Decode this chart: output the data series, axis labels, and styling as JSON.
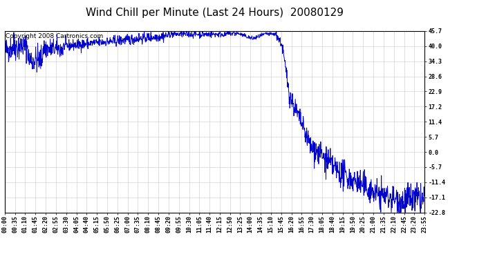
{
  "title": "Wind Chill per Minute (Last 24 Hours)  20080129",
  "copyright_text": "Copyright 2008 Cartronics.com",
  "line_color": "#0000cc",
  "background_color": "#ffffff",
  "plot_bg_color": "#ffffff",
  "grid_color": "#c8c8c8",
  "yticks": [
    45.7,
    40.0,
    34.3,
    28.6,
    22.9,
    17.2,
    11.4,
    5.7,
    0.0,
    -5.7,
    -11.4,
    -17.1,
    -22.8
  ],
  "ymin": -22.8,
  "ymax": 45.7,
  "xtick_labels": [
    "00:00",
    "00:35",
    "01:10",
    "01:45",
    "02:20",
    "02:55",
    "03:30",
    "04:05",
    "04:40",
    "05:15",
    "05:50",
    "06:25",
    "07:00",
    "07:35",
    "08:10",
    "08:45",
    "09:20",
    "09:55",
    "10:30",
    "11:05",
    "11:40",
    "12:15",
    "12:50",
    "13:25",
    "14:00",
    "14:35",
    "15:10",
    "15:45",
    "16:20",
    "16:55",
    "17:30",
    "18:05",
    "18:40",
    "19:15",
    "19:50",
    "20:25",
    "21:00",
    "21:35",
    "22:10",
    "22:45",
    "23:20",
    "23:55"
  ],
  "title_fontsize": 11,
  "tick_fontsize": 6,
  "copyright_fontsize": 6.5,
  "line_width": 0.7,
  "figwidth": 6.9,
  "figheight": 3.75,
  "dpi": 100
}
